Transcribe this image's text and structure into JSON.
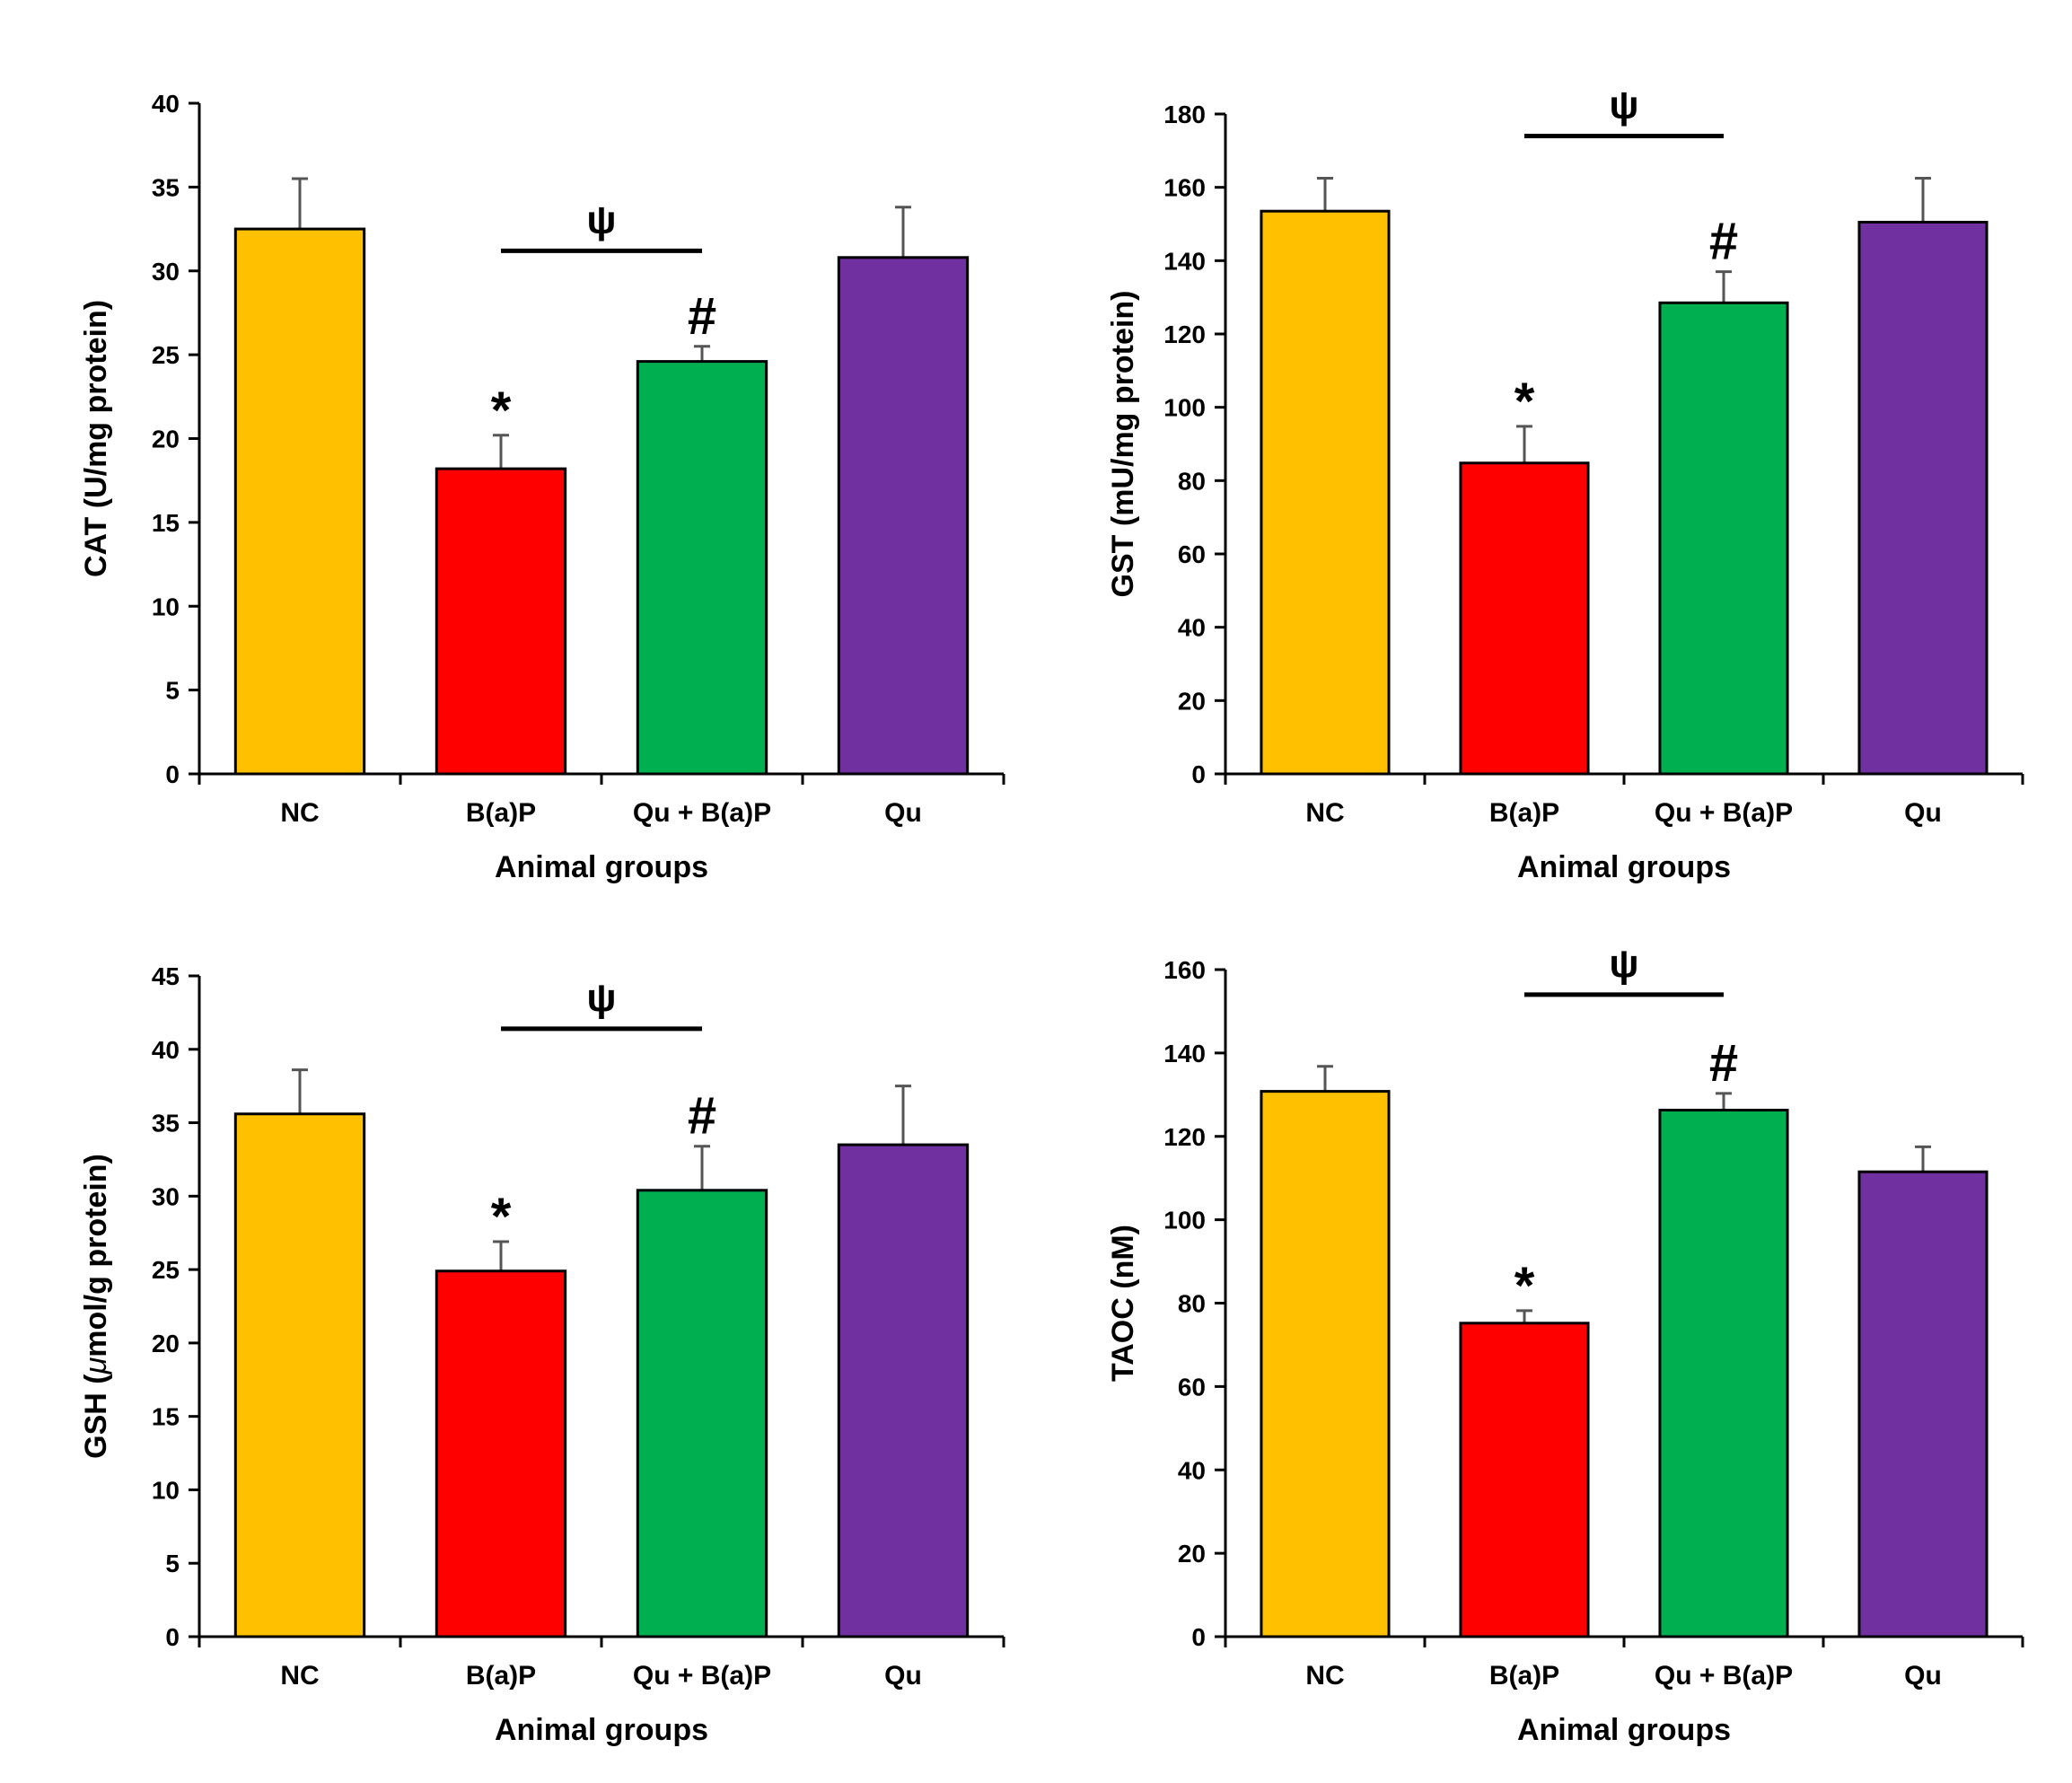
{
  "colors": {
    "NC": "#FFC000",
    "B(a)P": "#FF0000",
    "Qu + B(a)P": "#00B050",
    "Qu": "#7030A0",
    "outline": "#000000",
    "error": "#555555"
  },
  "chart_data": [
    {
      "id": "cat",
      "type": "bar",
      "title": "",
      "xlabel": "Animal groups",
      "ylabel": "CAT (U/mg protein)",
      "ylabel_unit_symbol": "",
      "categories": [
        "NC",
        "B(a)P",
        "Qu + B(a)P",
        "Qu"
      ],
      "values": [
        32.5,
        18.2,
        24.6,
        30.8
      ],
      "errors": [
        3.0,
        2.0,
        0.9,
        3.0
      ],
      "ylim": [
        0,
        40
      ],
      "yticks": [
        "0",
        "5",
        "10",
        "15",
        "20",
        "25",
        "30",
        "35",
        "40"
      ],
      "ytick_step": 5,
      "markers": [
        {
          "category": "B(a)P",
          "symbol": "*"
        },
        {
          "category": "Qu + B(a)P",
          "symbol": "#"
        }
      ],
      "bracket": {
        "from": "B(a)P",
        "to": "Qu + B(a)P",
        "symbol": "ψ",
        "level": 31.2
      }
    },
    {
      "id": "gst",
      "type": "bar",
      "title": "",
      "xlabel": "Animal groups",
      "ylabel": "GST (mU/mg protein)",
      "ylabel_unit_symbol": "",
      "categories": [
        "NC",
        "B(a)P",
        "Qu + B(a)P",
        "Qu"
      ],
      "values": [
        153.5,
        84.8,
        128.5,
        150.5
      ],
      "errors": [
        9.0,
        10.0,
        8.5,
        12.0
      ],
      "ylim": [
        0,
        180
      ],
      "yticks": [
        "0",
        "20",
        "40",
        "60",
        "80",
        "100",
        "120",
        "140",
        "160",
        "180"
      ],
      "ytick_step": 20,
      "markers": [
        {
          "category": "B(a)P",
          "symbol": "*"
        },
        {
          "category": "Qu + B(a)P",
          "symbol": "#"
        }
      ],
      "bracket": {
        "from": "B(a)P",
        "to": "Qu + B(a)P",
        "symbol": "ψ",
        "level": 174
      }
    },
    {
      "id": "gsh",
      "type": "bar",
      "title": "",
      "xlabel": "Animal groups",
      "ylabel": "GSH (μmol/g protein)",
      "ylabel_unit_symbol": "μ",
      "categories": [
        "NC",
        "B(a)P",
        "Qu + B(a)P",
        "Qu"
      ],
      "values": [
        35.6,
        24.9,
        30.4,
        33.5
      ],
      "errors": [
        3.0,
        2.0,
        3.0,
        4.0
      ],
      "ylim": [
        0,
        45
      ],
      "yticks": [
        "0",
        "5",
        "10",
        "15",
        "20",
        "25",
        "30",
        "35",
        "40",
        "45"
      ],
      "ytick_step": 5,
      "markers": [
        {
          "category": "B(a)P",
          "symbol": "*"
        },
        {
          "category": "Qu + B(a)P",
          "symbol": "#"
        }
      ],
      "bracket": {
        "from": "B(a)P",
        "to": "Qu + B(a)P",
        "symbol": "ψ",
        "level": 41.4
      }
    },
    {
      "id": "taoc",
      "type": "bar",
      "title": "",
      "xlabel": "Animal groups",
      "ylabel": "TAOC (nM)",
      "ylabel_unit_symbol": "",
      "categories": [
        "NC",
        "B(a)P",
        "Qu + B(a)P",
        "Qu"
      ],
      "values": [
        130.8,
        75.2,
        126.3,
        111.5
      ],
      "errors": [
        6.0,
        3.0,
        4.0,
        6.0
      ],
      "ylim": [
        0,
        160
      ],
      "yticks": [
        "0",
        "20",
        "40",
        "60",
        "80",
        "100",
        "120",
        "140",
        "160"
      ],
      "ytick_step": 20,
      "markers": [
        {
          "category": "B(a)P",
          "symbol": "*"
        },
        {
          "category": "Qu + B(a)P",
          "symbol": "#"
        }
      ],
      "bracket": {
        "from": "B(a)P",
        "to": "Qu + B(a)P",
        "symbol": "ψ",
        "level": 154
      }
    }
  ]
}
